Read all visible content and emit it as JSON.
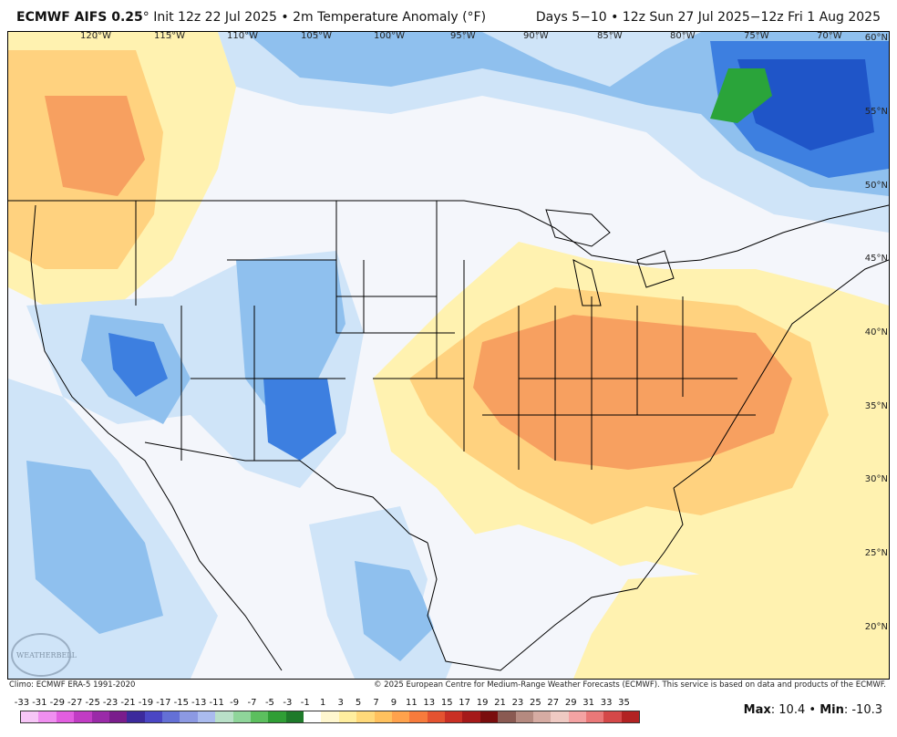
{
  "header": {
    "model": "ECMWF AIFS 0.25",
    "degree": "°",
    "init": "Init 12z 22 Jul 2025",
    "bullet": "•",
    "field": "2m Temperature Anomaly (°F)",
    "period": "Days 5−10  •  12z Sun 27 Jul 2025−12z Fri 1 Aug 2025"
  },
  "axes": {
    "longitudes": [
      "120°W",
      "115°W",
      "110°W",
      "105°W",
      "100°W",
      "95°W",
      "90°W",
      "85°W",
      "80°W",
      "75°W",
      "70°W"
    ],
    "latitudes": [
      "60°N",
      "55°N",
      "50°N",
      "45°N",
      "40°N",
      "35°N",
      "30°N",
      "25°N",
      "20°N"
    ]
  },
  "footer": {
    "climo": "Climo: ECMWF ERA-5 1991-2020",
    "copyright": "© 2025 European Centre for Medium-Range Weather Forecasts (ECMWF). This service is based on data and products of the ECMWF."
  },
  "logo": {
    "text": "WEATHERBELL"
  },
  "scale": {
    "labels": [
      "-33",
      "-31",
      "-29",
      "-27",
      "-25",
      "-23",
      "-21",
      "-19",
      "-17",
      "-15",
      "-13",
      "-11",
      "-9",
      "-7",
      "-5",
      "-3",
      "-1",
      "1",
      "3",
      "5",
      "7",
      "9",
      "11",
      "13",
      "15",
      "17",
      "19",
      "21",
      "23",
      "25",
      "27",
      "29",
      "31",
      "33",
      "35"
    ],
    "colors": [
      "#f7c6f7",
      "#f08ff0",
      "#e25ee0",
      "#c13cc4",
      "#9a2aa8",
      "#7a1d8c",
      "#3c2a9c",
      "#4a46c4",
      "#6470d6",
      "#8c99e2",
      "#aabbee",
      "#b9e0c8",
      "#8fd59a",
      "#5cbf5e",
      "#2f9e35",
      "#1e7a2a",
      "#ffffff",
      "#fff7cf",
      "#ffee9f",
      "#ffd97a",
      "#ffc15e",
      "#ffa24c",
      "#f77b3c",
      "#e45330",
      "#c92f24",
      "#a51919",
      "#7a0d0d",
      "#8a5a52",
      "#b58a80",
      "#d6aca3",
      "#efcac3",
      "#f4a3a3",
      "#ea7878",
      "#d44848",
      "#b22222"
    ],
    "max_label": "Max",
    "max_value": "10.4",
    "min_label": "Min",
    "min_value": "-10.3",
    "sep": "•"
  },
  "colors": {
    "warm_light": "#fff2b0",
    "warm_mid": "#ffd27f",
    "warm_strong": "#f7a060",
    "cool_light": "#cfe4f8",
    "cool_mid": "#8fc0ee",
    "cool_strong": "#3d7fe0",
    "cool_deep": "#1f55c8",
    "green": "#2aa43a"
  }
}
